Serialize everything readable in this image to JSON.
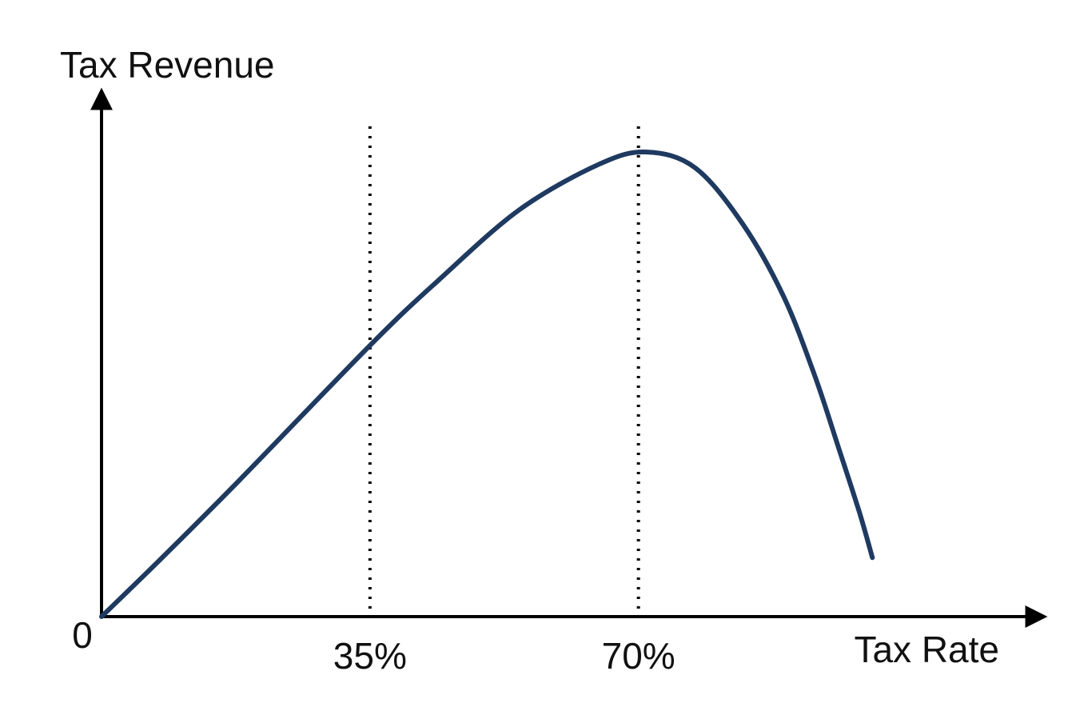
{
  "chart_data": {
    "type": "line",
    "y_label": "Tax Revenue",
    "x_label": "Tax Rate",
    "x": [
      0,
      7.6,
      18,
      35.2,
      44,
      54.5,
      64.9,
      71.1,
      77.4,
      83.6,
      88.9,
      93,
      96.1,
      98.8,
      100.5
    ],
    "series": [
      {
        "color": "#1f3a60",
        "values": [
          0,
          12.2,
          29.4,
          58.7,
          72.5,
          87.6,
          97.4,
          100,
          96.6,
          84.5,
          69,
          51.8,
          36.3,
          22.5,
          12.7
        ]
      }
    ],
    "xlim": [
      0,
      121
    ],
    "ylim": [
      0,
      110
    ],
    "xticks": [
      0,
      {
        "value": 35,
        "label": "35%"
      },
      {
        "value": 70,
        "label": "70%"
      }
    ],
    "dotted_guides": true
  }
}
